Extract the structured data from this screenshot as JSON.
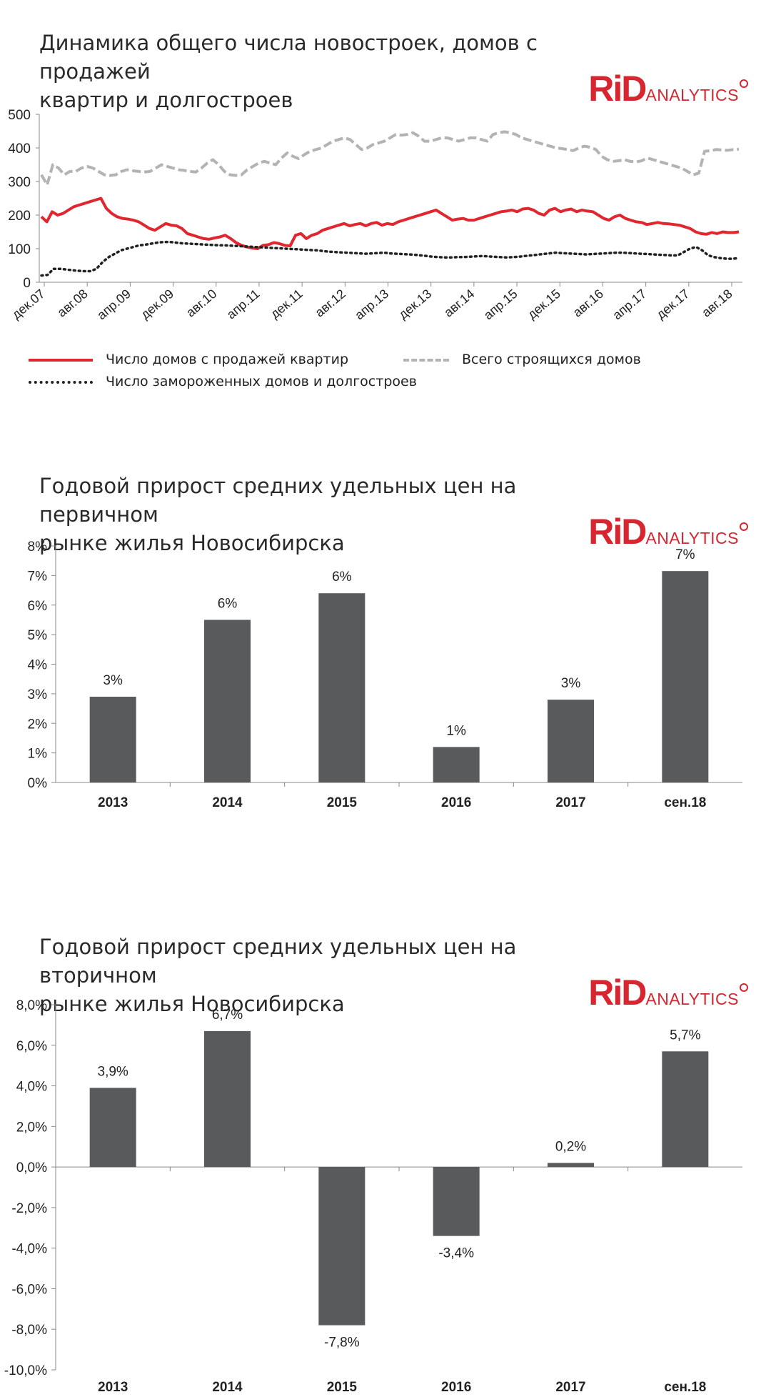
{
  "logo": {
    "rid": "RiD",
    "analytics": "ANALYTICS"
  },
  "chart_data": [
    {
      "type": "line",
      "title_lines": [
        "Динамика общего числа новостроек, домов с продажей",
        "квартир и долгостроев"
      ],
      "ylim": [
        0,
        500
      ],
      "yticks": [
        0,
        100,
        200,
        300,
        400,
        500
      ],
      "x_tick_labels": [
        "дек.07",
        "авг.08",
        "апр.09",
        "дек.09",
        "авг.10",
        "апр.11",
        "дек.11",
        "авг.12",
        "апр.13",
        "дек.13",
        "авг.14",
        "апр.15",
        "дек.15",
        "авг.16",
        "апр.17",
        "дек.17",
        "авг.18"
      ],
      "grid": false,
      "legend_position": "bottom",
      "series": [
        {
          "name": "Число домов с продажей квартир",
          "color": "#e0262f",
          "style": "solid",
          "values": [
            195,
            180,
            210,
            200,
            205,
            215,
            225,
            230,
            235,
            240,
            245,
            250,
            220,
            205,
            195,
            190,
            188,
            185,
            180,
            170,
            160,
            155,
            165,
            175,
            170,
            168,
            160,
            145,
            140,
            135,
            130,
            128,
            132,
            135,
            140,
            130,
            118,
            110,
            105,
            102,
            100,
            110,
            112,
            118,
            115,
            110,
            108,
            140,
            145,
            130,
            140,
            145,
            155,
            160,
            165,
            170,
            175,
            168,
            172,
            175,
            168,
            175,
            178,
            170,
            175,
            172,
            180,
            185,
            190,
            195,
            200,
            205,
            210,
            215,
            205,
            195,
            185,
            188,
            190,
            185,
            185,
            190,
            195,
            200,
            205,
            210,
            212,
            215,
            210,
            218,
            220,
            215,
            205,
            200,
            215,
            220,
            210,
            215,
            218,
            210,
            215,
            212,
            210,
            200,
            190,
            185,
            195,
            200,
            190,
            185,
            180,
            178,
            172,
            175,
            178,
            175,
            174,
            172,
            170,
            165,
            160,
            150,
            145,
            143,
            148,
            145,
            150,
            148,
            148,
            150
          ]
        },
        {
          "name": "Всего строящихся домов",
          "color": "#b3b3b3",
          "style": "dashed",
          "values": [
            320,
            290,
            350,
            340,
            320,
            330,
            330,
            340,
            345,
            340,
            330,
            320,
            318,
            320,
            330,
            335,
            332,
            330,
            328,
            330,
            340,
            350,
            345,
            340,
            335,
            333,
            330,
            328,
            340,
            355,
            365,
            350,
            330,
            320,
            318,
            320,
            335,
            345,
            355,
            360,
            355,
            350,
            370,
            385,
            375,
            368,
            380,
            390,
            395,
            400,
            410,
            420,
            425,
            430,
            425,
            410,
            395,
            400,
            410,
            415,
            420,
            430,
            440,
            438,
            440,
            445,
            435,
            420,
            420,
            425,
            430,
            430,
            425,
            420,
            425,
            430,
            430,
            425,
            420,
            440,
            445,
            448,
            445,
            440,
            430,
            425,
            420,
            415,
            410,
            405,
            400,
            398,
            395,
            392,
            400,
            405,
            402,
            395,
            375,
            365,
            360,
            362,
            365,
            360,
            358,
            362,
            370,
            365,
            360,
            355,
            350,
            345,
            340,
            330,
            320,
            325,
            390,
            392,
            395,
            394,
            393,
            395,
            396
          ]
        },
        {
          "name": "Число замороженных домов и долгостроев",
          "color": "#222222",
          "style": "dotted",
          "values": [
            20,
            22,
            40,
            40,
            38,
            36,
            34,
            33,
            33,
            40,
            60,
            75,
            85,
            95,
            100,
            105,
            110,
            112,
            115,
            118,
            120,
            120,
            118,
            116,
            115,
            114,
            113,
            112,
            111,
            110,
            110,
            109,
            108,
            107,
            106,
            105,
            104,
            103,
            102,
            101,
            100,
            99,
            98,
            97,
            96,
            95,
            93,
            91,
            90,
            89,
            88,
            87,
            86,
            85,
            86,
            87,
            88,
            86,
            85,
            84,
            83,
            82,
            80,
            78,
            76,
            75,
            74,
            74,
            75,
            75,
            76,
            77,
            78,
            77,
            76,
            75,
            74,
            75,
            76,
            78,
            80,
            82,
            84,
            86,
            88,
            87,
            86,
            85,
            84,
            83,
            84,
            85,
            86,
            87,
            88,
            88,
            87,
            86,
            85,
            84,
            83,
            82,
            81,
            80,
            80,
            90,
            100,
            105,
            95,
            80,
            75,
            72,
            70,
            70,
            72
          ]
        }
      ]
    },
    {
      "type": "bar",
      "title_lines": [
        "Годовой прирост средних удельных цен на первичном",
        "рынке жилья Новосибирска"
      ],
      "categories": [
        "2013",
        "2014",
        "2015",
        "2016",
        "2017",
        "сен.18"
      ],
      "values": [
        2.9,
        5.5,
        6.4,
        1.2,
        2.8,
        7.15
      ],
      "data_labels": [
        "3%",
        "6%",
        "6%",
        "1%",
        "3%",
        "7%"
      ],
      "ylim": [
        0,
        8
      ],
      "yticks": [
        0,
        1,
        2,
        3,
        4,
        5,
        6,
        7,
        8
      ],
      "ytick_labels": [
        "0%",
        "1%",
        "2%",
        "3%",
        "4%",
        "5%",
        "6%",
        "7%",
        "8%"
      ],
      "bar_color": "#595a5c"
    },
    {
      "type": "bar",
      "title_lines": [
        "Годовой прирост средних удельных цен на вторичном",
        "рынке жилья Новосибирска"
      ],
      "categories": [
        "2013",
        "2014",
        "2015",
        "2016",
        "2017",
        "сен.18"
      ],
      "values": [
        3.9,
        6.7,
        -7.8,
        -3.4,
        0.2,
        5.7
      ],
      "data_labels": [
        "3,9%",
        "6,7%",
        "-7,8%",
        "-3,4%",
        "0,2%",
        "5,7%"
      ],
      "ylim": [
        -10,
        8
      ],
      "yticks": [
        8,
        6,
        4,
        2,
        0,
        -2,
        -4,
        -6,
        -8,
        -10
      ],
      "ytick_labels": [
        "8,0%",
        "6,0%",
        "4,0%",
        "2,0%",
        "0,0%",
        "-2,0%",
        "-4,0%",
        "-6,0%",
        "-8,0%",
        "-10,0%"
      ],
      "bar_color": "#595a5c"
    }
  ]
}
